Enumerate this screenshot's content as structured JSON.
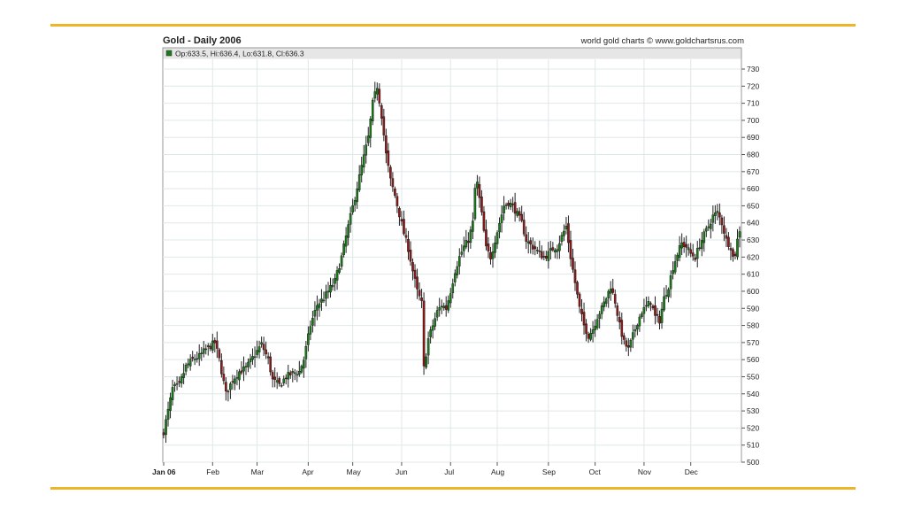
{
  "page": {
    "accent_color": "#f0b429"
  },
  "header": {
    "title": "Gold - Daily 2006",
    "credit": "world gold charts © www.goldchartsrus.com"
  },
  "chart_data": {
    "type": "candlestick",
    "title": "Gold - Daily 2006",
    "legend_text": "Op:633.5, Hi:636.4, Lo:631.8, Cl:636.3",
    "legend_color": "#1a7a1a",
    "up_color": "#1a7a1a",
    "down_color": "#8b1a1a",
    "y_axis_position": "right",
    "ylim": [
      500,
      735
    ],
    "y_ticks": [
      500,
      510,
      520,
      530,
      540,
      550,
      560,
      570,
      580,
      590,
      600,
      610,
      620,
      630,
      640,
      650,
      660,
      670,
      680,
      690,
      700,
      710,
      720,
      730
    ],
    "grid": true,
    "x_ticks": [
      {
        "label": "Jan 06",
        "day": 0,
        "bold": true
      },
      {
        "label": "Feb",
        "day": 22
      },
      {
        "label": "Mar",
        "day": 42
      },
      {
        "label": "Apr",
        "day": 65
      },
      {
        "label": "May",
        "day": 85
      },
      {
        "label": "Jun",
        "day": 107
      },
      {
        "label": "Jul",
        "day": 129
      },
      {
        "label": "Aug",
        "day": 150
      },
      {
        "label": "Sep",
        "day": 173
      },
      {
        "label": "Oct",
        "day": 194
      },
      {
        "label": "Nov",
        "day": 216
      },
      {
        "label": "Dec",
        "day": 237
      }
    ],
    "x_max_day": 259,
    "close_path": [
      [
        0,
        518
      ],
      [
        2,
        530
      ],
      [
        4,
        543
      ],
      [
        7,
        545
      ],
      [
        10,
        556
      ],
      [
        13,
        560
      ],
      [
        16,
        562
      ],
      [
        19,
        566
      ],
      [
        23,
        570
      ],
      [
        25,
        560
      ],
      [
        28,
        540
      ],
      [
        31,
        548
      ],
      [
        34,
        553
      ],
      [
        37,
        555
      ],
      [
        41,
        563
      ],
      [
        44,
        569
      ],
      [
        47,
        560
      ],
      [
        49,
        548
      ],
      [
        52,
        545
      ],
      [
        55,
        550
      ],
      [
        58,
        552
      ],
      [
        61,
        553
      ],
      [
        63,
        560
      ],
      [
        66,
        580
      ],
      [
        69,
        592
      ],
      [
        72,
        596
      ],
      [
        74,
        600
      ],
      [
        77,
        606
      ],
      [
        80,
        620
      ],
      [
        83,
        638
      ],
      [
        86,
        655
      ],
      [
        89,
        673
      ],
      [
        92,
        690
      ],
      [
        94,
        710
      ],
      [
        96,
        720
      ],
      [
        98,
        703
      ],
      [
        100,
        680
      ],
      [
        102,
        665
      ],
      [
        104,
        656
      ],
      [
        106,
        645
      ],
      [
        108,
        634
      ],
      [
        110,
        625
      ],
      [
        112,
        612
      ],
      [
        114,
        600
      ],
      [
        116,
        593
      ],
      [
        117,
        555
      ],
      [
        119,
        572
      ],
      [
        121,
        580
      ],
      [
        123,
        588
      ],
      [
        125,
        592
      ],
      [
        127,
        590
      ],
      [
        129,
        600
      ],
      [
        131,
        612
      ],
      [
        133,
        620
      ],
      [
        135,
        626
      ],
      [
        137,
        630
      ],
      [
        139,
        640
      ],
      [
        140,
        660
      ],
      [
        141,
        663
      ],
      [
        143,
        645
      ],
      [
        145,
        625
      ],
      [
        147,
        620
      ],
      [
        149,
        630
      ],
      [
        151,
        640
      ],
      [
        153,
        650
      ],
      [
        155,
        652
      ],
      [
        157,
        650
      ],
      [
        159,
        645
      ],
      [
        161,
        640
      ],
      [
        163,
        630
      ],
      [
        165,
        627
      ],
      [
        167,
        625
      ],
      [
        169,
        622
      ],
      [
        171,
        620
      ],
      [
        173,
        622
      ],
      [
        175,
        625
      ],
      [
        177,
        626
      ],
      [
        179,
        632
      ],
      [
        181,
        638
      ],
      [
        183,
        620
      ],
      [
        185,
        605
      ],
      [
        187,
        590
      ],
      [
        189,
        580
      ],
      [
        191,
        574
      ],
      [
        193,
        578
      ],
      [
        195,
        585
      ],
      [
        197,
        590
      ],
      [
        199,
        596
      ],
      [
        201,
        603
      ],
      [
        203,
        594
      ],
      [
        205,
        580
      ],
      [
        207,
        570
      ],
      [
        209,
        566
      ],
      [
        211,
        574
      ],
      [
        213,
        582
      ],
      [
        215,
        588
      ],
      [
        217,
        591
      ],
      [
        219,
        594
      ],
      [
        221,
        585
      ],
      [
        223,
        583
      ],
      [
        225,
        596
      ],
      [
        227,
        603
      ],
      [
        229,
        614
      ],
      [
        231,
        622
      ],
      [
        233,
        628
      ],
      [
        235,
        626
      ],
      [
        237,
        622
      ],
      [
        239,
        620
      ],
      [
        241,
        627
      ],
      [
        243,
        633
      ],
      [
        245,
        638
      ],
      [
        247,
        644
      ],
      [
        249,
        646
      ],
      [
        251,
        640
      ],
      [
        253,
        630
      ],
      [
        255,
        626
      ],
      [
        256,
        620
      ],
      [
        257,
        622
      ],
      [
        258,
        630
      ],
      [
        259,
        636
      ]
    ]
  }
}
